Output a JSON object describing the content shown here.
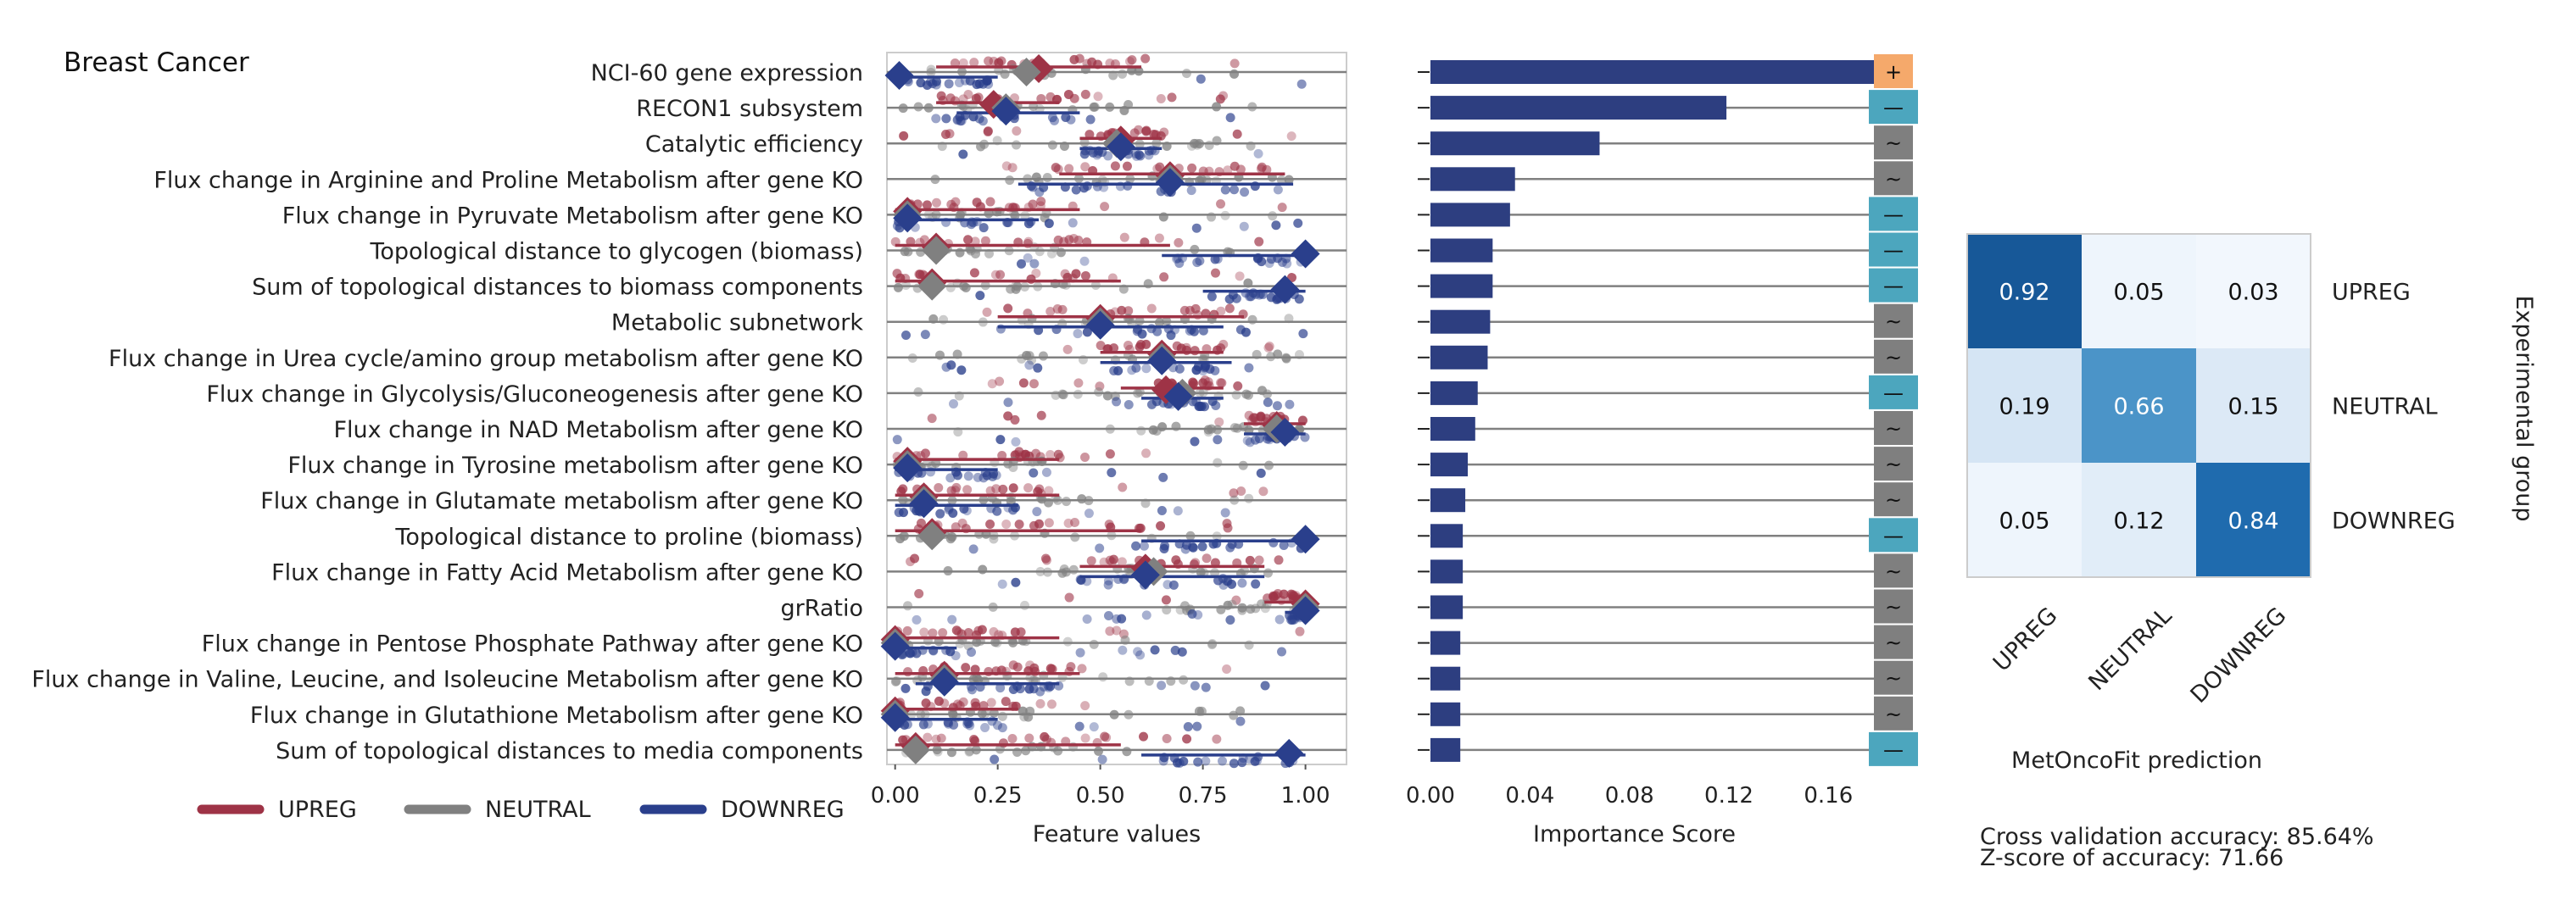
{
  "chart_data": {
    "type": "figure",
    "title": "Breast Cancer",
    "colors": {
      "upreg": "#9E3346",
      "neutral": "#808080",
      "downreg": "#2A3F8C",
      "bar": "#2D3E80",
      "plus_box": "#F5A96B",
      "minus_box": "#4CA6BE",
      "tilde_box": "#7F7F7F"
    },
    "legend": [
      {
        "name": "UPREG",
        "key": "upreg"
      },
      {
        "name": "NEUTRAL",
        "key": "neutral"
      },
      {
        "name": "DOWNREG",
        "key": "downreg"
      }
    ],
    "features": [
      {
        "label": "NCI-60 gene expression",
        "importance": 0.181,
        "sign": "+",
        "up": 0.35,
        "up_lo": 0.1,
        "up_hi": 0.6,
        "neutral": 0.32,
        "down": 0.01,
        "down_lo": 0.0,
        "down_hi": 0.25
      },
      {
        "label": "RECON1 subsystem",
        "importance": 0.119,
        "sign": "—",
        "up": 0.24,
        "up_lo": 0.1,
        "up_hi": 0.4,
        "neutral": 0.27,
        "down": 0.27,
        "down_lo": 0.15,
        "down_hi": 0.45
      },
      {
        "label": "Catalytic efficiency",
        "importance": 0.068,
        "sign": "~",
        "up": 0.55,
        "up_lo": 0.45,
        "up_hi": 0.65,
        "neutral": 0.54,
        "down": 0.55,
        "down_lo": 0.45,
        "down_hi": 0.65
      },
      {
        "label": "Flux change in Arginine and Proline Metabolism after gene KO",
        "importance": 0.034,
        "sign": "~",
        "up": 0.67,
        "up_lo": 0.4,
        "up_hi": 0.95,
        "neutral": 0.67,
        "down": 0.67,
        "down_lo": 0.3,
        "down_hi": 0.97
      },
      {
        "label": "Flux change in Pyruvate Metabolism after gene KO",
        "importance": 0.032,
        "sign": "—",
        "up": 0.03,
        "up_lo": 0.0,
        "up_hi": 0.45,
        "neutral": 0.03,
        "down": 0.03,
        "down_lo": 0.0,
        "down_hi": 0.35
      },
      {
        "label": "Topological distance to glycogen (biomass)",
        "importance": 0.025,
        "sign": "—",
        "up": 0.1,
        "up_lo": 0.0,
        "up_hi": 0.67,
        "neutral": 0.1,
        "down": 1.0,
        "down_lo": 0.65,
        "down_hi": 1.0
      },
      {
        "label": "Sum of topological distances to biomass components",
        "importance": 0.025,
        "sign": "—",
        "up": 0.09,
        "up_lo": 0.0,
        "up_hi": 0.55,
        "neutral": 0.09,
        "down": 0.95,
        "down_lo": 0.75,
        "down_hi": 1.0
      },
      {
        "label": "Metabolic subnetwork",
        "importance": 0.024,
        "sign": "~",
        "up": 0.5,
        "up_lo": 0.25,
        "up_hi": 0.85,
        "neutral": 0.5,
        "down": 0.5,
        "down_lo": 0.25,
        "down_hi": 0.8
      },
      {
        "label": "Flux change in Urea cycle/amino group metabolism after gene KO",
        "importance": 0.023,
        "sign": "~",
        "up": 0.65,
        "up_lo": 0.5,
        "up_hi": 0.8,
        "neutral": 0.65,
        "down": 0.65,
        "down_lo": 0.5,
        "down_hi": 0.82
      },
      {
        "label": "Flux change in Glycolysis/Gluconeogenesis after gene KO",
        "importance": 0.019,
        "sign": "—",
        "up": 0.66,
        "up_lo": 0.55,
        "up_hi": 0.8,
        "neutral": 0.7,
        "down": 0.69,
        "down_lo": 0.6,
        "down_hi": 0.8
      },
      {
        "label": "Flux change in NAD Metabolism after gene KO",
        "importance": 0.018,
        "sign": "~",
        "up": 0.93,
        "up_lo": 0.85,
        "up_hi": 1.0,
        "neutral": 0.93,
        "down": 0.95,
        "down_lo": 0.85,
        "down_hi": 1.0
      },
      {
        "label": "Flux change in Tyrosine metabolism after gene KO",
        "importance": 0.015,
        "sign": "~",
        "up": 0.03,
        "up_lo": 0.0,
        "up_hi": 0.4,
        "neutral": 0.03,
        "down": 0.03,
        "down_lo": 0.0,
        "down_hi": 0.25
      },
      {
        "label": "Flux change in Glutamate metabolism after gene KO",
        "importance": 0.014,
        "sign": "~",
        "up": 0.07,
        "up_lo": 0.0,
        "up_hi": 0.4,
        "neutral": 0.07,
        "down": 0.07,
        "down_lo": 0.0,
        "down_hi": 0.3
      },
      {
        "label": "Topological distance to proline (biomass)",
        "importance": 0.013,
        "sign": "—",
        "up": 0.09,
        "up_lo": 0.0,
        "up_hi": 0.6,
        "neutral": 0.09,
        "down": 1.0,
        "down_lo": 0.6,
        "down_hi": 1.0
      },
      {
        "label": "Flux change in Fatty Acid Metabolism after gene KO",
        "importance": 0.013,
        "sign": "~",
        "up": 0.61,
        "up_lo": 0.45,
        "up_hi": 0.9,
        "neutral": 0.63,
        "down": 0.61,
        "down_lo": 0.45,
        "down_hi": 0.9
      },
      {
        "label": "grRatio",
        "importance": 0.013,
        "sign": "~",
        "up": 1.0,
        "up_lo": 0.9,
        "up_hi": 1.0,
        "neutral": 1.0,
        "down": 1.0,
        "down_lo": 0.95,
        "down_hi": 1.0
      },
      {
        "label": "Flux change in Pentose Phosphate Pathway after gene KO",
        "importance": 0.012,
        "sign": "~",
        "up": 0.0,
        "up_lo": 0.0,
        "up_hi": 0.4,
        "neutral": 0.0,
        "down": 0.0,
        "down_lo": 0.0,
        "down_hi": 0.15
      },
      {
        "label": "Flux change in Valine, Leucine, and Isoleucine Metabolism after gene KO",
        "importance": 0.012,
        "sign": "~",
        "up": 0.12,
        "up_lo": 0.0,
        "up_hi": 0.45,
        "neutral": 0.12,
        "down": 0.12,
        "down_lo": 0.05,
        "down_hi": 0.4
      },
      {
        "label": "Flux change in Glutathione Metabolism after gene KO",
        "importance": 0.012,
        "sign": "~",
        "up": 0.0,
        "up_lo": 0.0,
        "up_hi": 0.3,
        "neutral": 0.0,
        "down": 0.0,
        "down_lo": 0.0,
        "down_hi": 0.25
      },
      {
        "label": "Sum of topological distances to media components",
        "importance": 0.012,
        "sign": "—",
        "up": 0.05,
        "up_lo": 0.0,
        "up_hi": 0.55,
        "neutral": 0.05,
        "down": 0.96,
        "down_lo": 0.6,
        "down_hi": 1.0
      }
    ],
    "feature_axis": {
      "xlabel": "Feature values",
      "ticks": [
        "0.00",
        "0.25",
        "0.50",
        "0.75",
        "1.00"
      ],
      "tick_values": [
        0,
        0.25,
        0.5,
        0.75,
        1.0
      ],
      "xlim": [
        -0.02,
        1.1
      ]
    },
    "importance_axis": {
      "xlabel": "Importance Score",
      "ticks": [
        "0.00",
        "0.04",
        "0.08",
        "0.12",
        "0.16"
      ],
      "tick_values": [
        0,
        0.04,
        0.08,
        0.12,
        0.16
      ],
      "xlim": [
        0,
        0.18
      ]
    },
    "heatmap": {
      "rows": [
        "UPREG",
        "NEUTRAL",
        "DOWNREG"
      ],
      "cols": [
        "UPREG",
        "NEUTRAL",
        "DOWNREG"
      ],
      "values": [
        [
          0.92,
          0.05,
          0.03
        ],
        [
          0.19,
          0.66,
          0.15
        ],
        [
          0.05,
          0.12,
          0.84
        ]
      ],
      "value_labels": [
        [
          "0.92",
          "0.05",
          "0.03"
        ],
        [
          "0.19",
          "0.66",
          "0.15"
        ],
        [
          "0.05",
          "0.12",
          "0.84"
        ]
      ],
      "xlabel": "MetOncoFit prediction",
      "ylabel": "Experimental group"
    },
    "footer": [
      "Cross validation accuracy: 85.64%",
      "Z-score of accuracy: 71.66"
    ]
  }
}
